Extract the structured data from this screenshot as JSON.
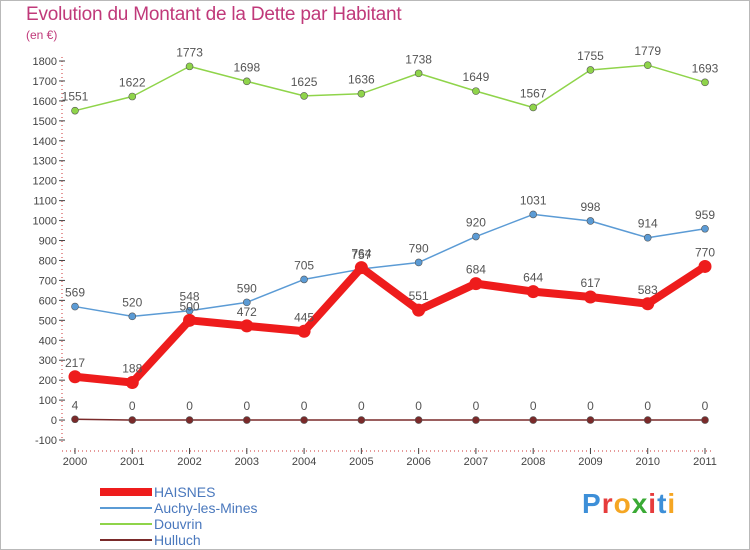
{
  "title": "Evolution du Montant de la Dette par Habitant",
  "subtitle": "(en €)",
  "brand": {
    "text": "Proxiti",
    "colors": [
      "#3d8fd8",
      "#e63c3c",
      "#f5a623",
      "#3aaa35",
      "#e63c3c",
      "#3d8fd8",
      "#f5a623"
    ]
  },
  "colors": {
    "title": "#c0397a",
    "axis": "#444444",
    "grid_tick": "#cc3333",
    "label": "#555555"
  },
  "chart_data": {
    "type": "line",
    "x": [
      "2000",
      "2001",
      "2002",
      "2003",
      "2004",
      "2005",
      "2006",
      "2007",
      "2008",
      "2009",
      "2010",
      "2011"
    ],
    "ylim": [
      -100,
      1800
    ],
    "yticks": [
      -100,
      0,
      100,
      200,
      300,
      400,
      500,
      600,
      700,
      800,
      900,
      1000,
      1100,
      1200,
      1300,
      1400,
      1500,
      1600,
      1700,
      1800
    ],
    "legend_position": "bottom-left",
    "series": [
      {
        "name": "Hulluch",
        "color": "#7a2a2a",
        "width": 1.5,
        "marker": 3.5,
        "values": [
          4,
          0,
          0,
          0,
          0,
          0,
          0,
          0,
          0,
          0,
          0,
          0
        ]
      },
      {
        "name": "Douvrin",
        "color": "#8fd44a",
        "width": 1.5,
        "marker": 3.5,
        "values": [
          1551,
          1622,
          1773,
          1698,
          1625,
          1636,
          1738,
          1649,
          1567,
          1755,
          1779,
          1693
        ]
      },
      {
        "name": "Auchy-les-Mines",
        "color": "#5b9bd5",
        "width": 1.5,
        "marker": 3.5,
        "values": [
          569,
          520,
          548,
          590,
          705,
          757,
          790,
          920,
          1031,
          998,
          914,
          959
        ]
      },
      {
        "name": "HAISNES",
        "color": "#ee1c1c",
        "width": 8,
        "marker": 6.5,
        "values": [
          217,
          188,
          500,
          472,
          445,
          764,
          551,
          684,
          644,
          617,
          583,
          770
        ]
      }
    ]
  },
  "legend": [
    {
      "name": "HAISNES",
      "color": "#ee1c1c",
      "thickness": 8
    },
    {
      "name": "Auchy-les-Mines",
      "color": "#5b9bd5",
      "thickness": 2
    },
    {
      "name": "Douvrin",
      "color": "#8fd44a",
      "thickness": 2
    },
    {
      "name": "Hulluch",
      "color": "#7a2a2a",
      "thickness": 2
    }
  ]
}
